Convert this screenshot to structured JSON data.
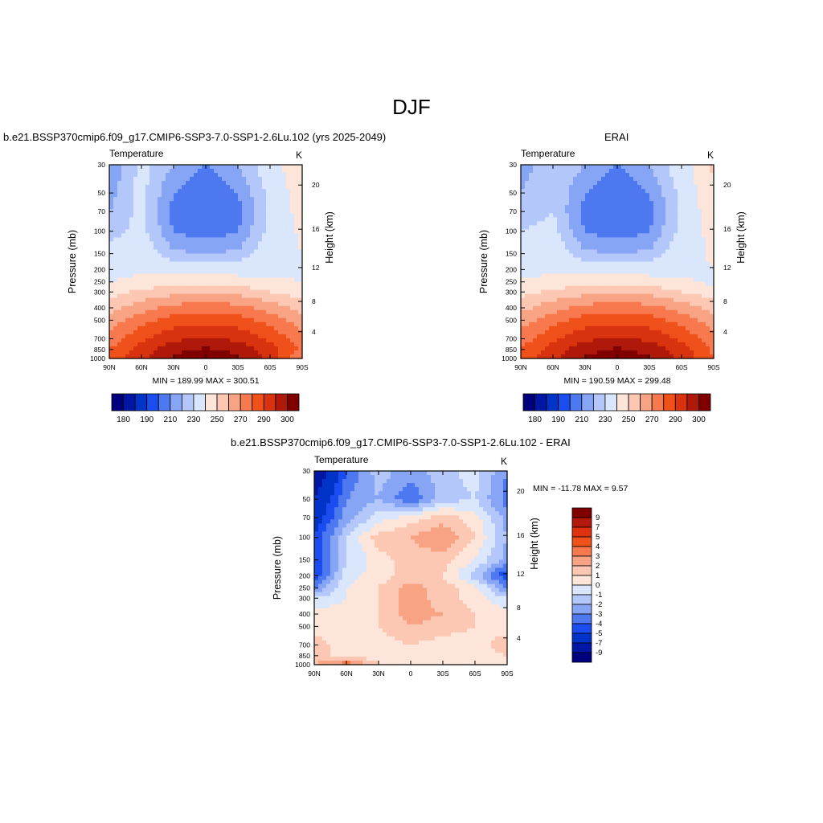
{
  "main_title": "DJF",
  "panels": {
    "model": {
      "title": "b.e21.BSSP370cmip6.f09_g17.CMIP6-SSP3-7.0-SSP1-2.6Lu.102 (yrs 2025-2049)",
      "left_label": "Temperature",
      "right_label": "K",
      "stats": "MIN = 189.99  MAX = 300.51"
    },
    "obs": {
      "title": "ERAI",
      "left_label": "Temperature",
      "right_label": "K",
      "stats": "MIN = 190.59  MAX = 299.48"
    },
    "diff": {
      "title": "b.e21.BSSP370cmip6.f09_g17.CMIP6-SSP3-7.0-SSP1-2.6Lu.102 - ERAI",
      "left_label": "Temperature",
      "right_label": "K",
      "stats": "MIN = -11.78  MAX =   9.57"
    }
  },
  "axes": {
    "ylabel": "Pressure (mb)",
    "y2label": "Height (km)",
    "pressure_ticks": [
      "30",
      "50",
      "70",
      "100",
      "150",
      "200",
      "250",
      "300",
      "400",
      "500",
      "700",
      "850",
      "1000"
    ],
    "height_ticks": [
      "4",
      "8",
      "12",
      "16",
      "20"
    ],
    "lat_ticks": [
      "90N",
      "60N",
      "30N",
      "0",
      "30S",
      "60S",
      "90S"
    ]
  },
  "colors": {
    "temp_scale": [
      "#00007f",
      "#0017a5",
      "#0034c8",
      "#1a4cf0",
      "#4d78f0",
      "#86a6f5",
      "#b3c7fa",
      "#d9e6fc",
      "#fde6d9",
      "#fcc7b3",
      "#f9a385",
      "#f7794d",
      "#f0511b",
      "#d8320f",
      "#b0180a",
      "#800000"
    ],
    "diff_scale": [
      "#800000",
      "#b4180a",
      "#e0320f",
      "#f0511b",
      "#f7794d",
      "#f9a385",
      "#fcc7b3",
      "#fde6d9",
      "#d9e6fc",
      "#b3c7fa",
      "#86a6f5",
      "#4d78f0",
      "#1a4cf0",
      "#0034c8",
      "#0017a5",
      "#00007f"
    ]
  },
  "chart_data": [
    {
      "type": "heatmap",
      "title": "b.e21.BSSP370cmip6.f09_g17.CMIP6-SSP3-7.0-SSP1-2.6Lu.102 (yrs 2025-2049)",
      "variable": "Temperature",
      "units": "K",
      "ylabel": "Pressure (mb)",
      "y2label": "Height (km)",
      "x": [
        90,
        60,
        30,
        0,
        -30,
        -60,
        -90
      ],
      "y": [
        30,
        50,
        70,
        100,
        150,
        200,
        250,
        300,
        400,
        500,
        700,
        850,
        1000
      ],
      "levels": [
        180,
        185,
        190,
        195,
        200,
        205,
        210,
        220,
        230,
        240,
        250,
        260,
        270,
        280,
        290,
        300
      ],
      "colorbar_labels": [
        "180",
        "190",
        "210",
        "230",
        "250",
        "270",
        "290",
        "300"
      ],
      "min": 189.99,
      "max": 300.51,
      "values": [
        [
          200,
          212,
          205,
          200,
          205,
          214,
          230
        ],
        [
          203,
          212,
          200,
          195,
          200,
          212,
          225
        ],
        [
          205,
          212,
          198,
          195,
          198,
          212,
          224
        ],
        [
          208,
          212,
          200,
          197,
          200,
          212,
          222
        ],
        [
          212,
          214,
          206,
          205,
          206,
          214,
          220
        ],
        [
          216,
          217,
          214,
          214,
          214,
          216,
          218
        ],
        [
          220,
          224,
          226,
          227,
          226,
          222,
          220
        ],
        [
          226,
          232,
          236,
          238,
          236,
          230,
          224
        ],
        [
          236,
          246,
          254,
          256,
          254,
          246,
          236
        ],
        [
          244,
          256,
          264,
          266,
          264,
          256,
          244
        ],
        [
          254,
          268,
          278,
          282,
          278,
          268,
          254
        ],
        [
          260,
          274,
          286,
          292,
          286,
          274,
          258
        ],
        [
          262,
          278,
          292,
          300,
          292,
          278,
          250
        ]
      ]
    },
    {
      "type": "heatmap",
      "title": "ERAI",
      "variable": "Temperature",
      "units": "K",
      "ylabel": "Pressure (mb)",
      "y2label": "Height (km)",
      "x": [
        90,
        60,
        30,
        0,
        -30,
        -60,
        -90
      ],
      "y": [
        30,
        50,
        70,
        100,
        150,
        200,
        250,
        300,
        400,
        500,
        700,
        850,
        1000
      ],
      "levels": [
        180,
        185,
        190,
        195,
        200,
        205,
        210,
        220,
        230,
        240,
        250,
        260,
        270,
        280,
        290,
        300
      ],
      "colorbar_labels": [
        "180",
        "190",
        "210",
        "230",
        "250",
        "270",
        "290",
        "300"
      ],
      "min": 190.59,
      "max": 299.48,
      "values": [
        [
          202,
          210,
          205,
          200,
          205,
          214,
          232
        ],
        [
          205,
          210,
          200,
          195,
          200,
          212,
          228
        ],
        [
          207,
          210,
          198,
          195,
          198,
          212,
          226
        ],
        [
          210,
          212,
          200,
          197,
          200,
          212,
          224
        ],
        [
          213,
          214,
          206,
          205,
          206,
          214,
          222
        ],
        [
          217,
          217,
          214,
          214,
          214,
          216,
          220
        ],
        [
          221,
          224,
          226,
          227,
          226,
          222,
          218
        ],
        [
          227,
          232,
          236,
          238,
          236,
          230,
          224
        ],
        [
          237,
          246,
          254,
          256,
          254,
          246,
          236
        ],
        [
          245,
          256,
          264,
          266,
          264,
          256,
          244
        ],
        [
          255,
          268,
          278,
          282,
          278,
          268,
          254
        ],
        [
          261,
          274,
          286,
          292,
          286,
          274,
          258
        ],
        [
          263,
          278,
          292,
          299,
          292,
          278,
          260
        ]
      ]
    },
    {
      "type": "heatmap",
      "title": "b.e21.BSSP370cmip6.f09_g17.CMIP6-SSP3-7.0-SSP1-2.6Lu.102 - ERAI",
      "variable": "Temperature",
      "units": "K",
      "ylabel": "Pressure (mb)",
      "y2label": "Height (km)",
      "x": [
        90,
        60,
        30,
        0,
        -30,
        -60,
        -90
      ],
      "y": [
        30,
        50,
        70,
        100,
        150,
        200,
        250,
        300,
        400,
        500,
        700,
        850,
        1000
      ],
      "levels": [
        -9,
        -7,
        -5,
        -4,
        -3,
        -2,
        -1,
        0,
        1,
        2,
        3,
        4,
        5,
        7,
        9
      ],
      "colorbar_labels": [
        "9",
        "7",
        "5",
        "4",
        "3",
        "2",
        "1",
        "0",
        "-1",
        "-2",
        "-3",
        "-4",
        "-5",
        "-7",
        "-9"
      ],
      "min": -11.78,
      "max": 9.57,
      "values": [
        [
          -9,
          -4,
          -1.5,
          -2.5,
          -1.5,
          -0.5,
          -3
        ],
        [
          -7,
          -3,
          -2,
          -4,
          -1.5,
          -1,
          -3.5
        ],
        [
          -6,
          -2.5,
          -0.5,
          0.5,
          1.5,
          0.5,
          -2.5
        ],
        [
          -5,
          -1,
          1.5,
          2,
          3,
          1,
          -2
        ],
        [
          -5,
          -1,
          0.5,
          1.5,
          1.5,
          0,
          -2.5
        ],
        [
          -5,
          -0.5,
          0.5,
          1.5,
          1,
          -1.5,
          -5
        ],
        [
          -3,
          0,
          1,
          2.5,
          1.5,
          0.5,
          -3
        ],
        [
          -1,
          0,
          1,
          2.5,
          1.5,
          0.5,
          -1
        ],
        [
          0.5,
          0.5,
          1,
          2.5,
          2,
          1,
          0.5
        ],
        [
          0.5,
          0.5,
          1,
          2,
          1.5,
          1,
          0.5
        ],
        [
          1.5,
          0.5,
          0.5,
          1,
          0.5,
          0.5,
          1.5
        ],
        [
          1.5,
          0.5,
          0.5,
          0.5,
          0.5,
          0.5,
          1
        ],
        [
          2,
          4,
          1,
          0.5,
          0.5,
          0.5,
          1
        ]
      ]
    }
  ]
}
